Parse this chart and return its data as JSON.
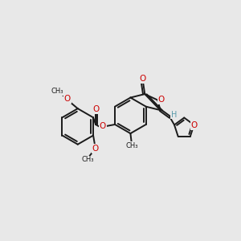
{
  "bg_color": "#e8e8e8",
  "bond_color": "#1a1a1a",
  "oxygen_color": "#cc0000",
  "hydrogen_color": "#5a9aaa",
  "bw": 1.4,
  "fs": 7.5,
  "xlim": [
    -1.5,
    10.5
  ],
  "ylim": [
    -1.0,
    8.5
  ]
}
